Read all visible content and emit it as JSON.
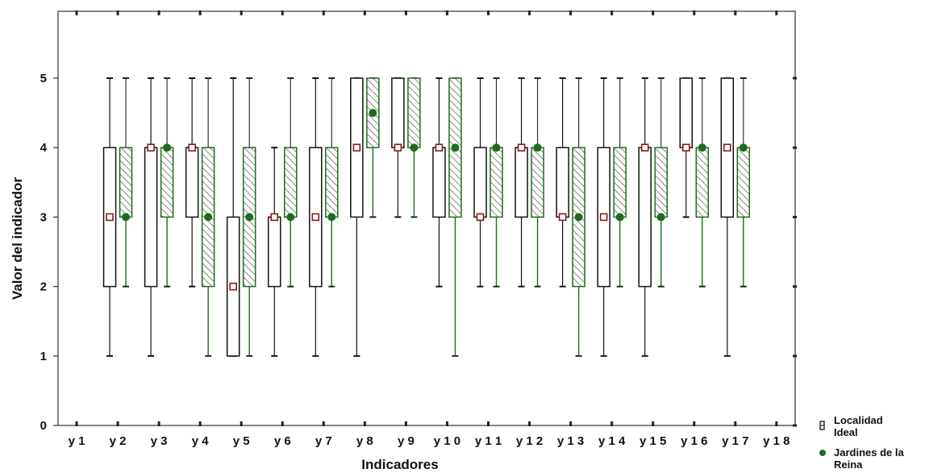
{
  "chart_data": {
    "type": "boxplot",
    "xlabel": "Indicadores",
    "ylabel": "Valor del indicador",
    "ylim": [
      0,
      6
    ],
    "yticks": [
      "0",
      "1",
      "2",
      "3",
      "4",
      "5"
    ],
    "categories": [
      "y 1",
      "y 2",
      "y 3",
      "y 4",
      "y 5",
      "y 6",
      "y 7",
      "y 8",
      "y 9",
      "y 1 0",
      "y 1 1",
      "y 1 2",
      "y 1 3",
      "y 1 4",
      "y 1 5",
      "y 1 6",
      "y 1 7",
      "y 1 8"
    ],
    "grid": false,
    "legend": {
      "position": "bottom-right",
      "entries": [
        {
          "lines": [
            "Localidad",
            "Ideal"
          ],
          "marker": "hollow-box"
        },
        {
          "lines": [
            "Jardines de la",
            "Reina"
          ],
          "marker": "green-dot"
        }
      ]
    },
    "colors": {
      "localidad": "#111111",
      "localidad_median": "#8b1a1a",
      "jardines": "#1e6b1e",
      "hatch": "#555555"
    },
    "series": [
      {
        "name": "Localidad Ideal",
        "boxes": [
          {
            "category": "y 2",
            "min": 1,
            "q1": 2,
            "median": 3,
            "q3": 4,
            "max": 5
          },
          {
            "category": "y 3",
            "min": 1,
            "q1": 2,
            "median": 4,
            "q3": 4,
            "max": 5
          },
          {
            "category": "y 4",
            "min": 2,
            "q1": 3,
            "median": 4,
            "q3": 4,
            "max": 5
          },
          {
            "category": "y 5",
            "min": 1,
            "q1": 1,
            "median": 2,
            "q3": 3,
            "max": 5
          },
          {
            "category": "y 6",
            "min": 1,
            "q1": 2,
            "median": 3,
            "q3": 3,
            "max": 4
          },
          {
            "category": "y 7",
            "min": 1,
            "q1": 2,
            "median": 3,
            "q3": 4,
            "max": 5
          },
          {
            "category": "y 8",
            "min": 1,
            "q1": 3,
            "median": 4,
            "q3": 5,
            "max": 5
          },
          {
            "category": "y 9",
            "min": 3,
            "q1": 4,
            "median": 4,
            "q3": 5,
            "max": 5
          },
          {
            "category": "y 1 0",
            "min": 2,
            "q1": 3,
            "median": 4,
            "q3": 4,
            "max": 5
          },
          {
            "category": "y 1 1",
            "min": 2,
            "q1": 3,
            "median": 3,
            "q3": 4,
            "max": 5
          },
          {
            "category": "y 1 2",
            "min": 2,
            "q1": 3,
            "median": 4,
            "q3": 4,
            "max": 5
          },
          {
            "category": "y 1 3",
            "min": 2,
            "q1": 3,
            "median": 3,
            "q3": 4,
            "max": 5
          },
          {
            "category": "y 1 4",
            "min": 1,
            "q1": 2,
            "median": 3,
            "q3": 4,
            "max": 5
          },
          {
            "category": "y 1 5",
            "min": 1,
            "q1": 2,
            "median": 4,
            "q3": 4,
            "max": 5
          },
          {
            "category": "y 1 6",
            "min": 3,
            "q1": 4,
            "median": 4,
            "q3": 5,
            "max": 5
          },
          {
            "category": "y 1 7",
            "min": 1,
            "q1": 3,
            "median": 4,
            "q3": 5,
            "max": 5
          }
        ]
      },
      {
        "name": "Jardines de la Reina",
        "boxes": [
          {
            "category": "y 2",
            "min": 2,
            "q1": 3,
            "median": 3,
            "q3": 4,
            "max": 5
          },
          {
            "category": "y 3",
            "min": 2,
            "q1": 3,
            "median": 4,
            "q3": 4,
            "max": 5
          },
          {
            "category": "y 4",
            "min": 1,
            "q1": 2,
            "median": 3,
            "q3": 4,
            "max": 5
          },
          {
            "category": "y 5",
            "min": 1,
            "q1": 2,
            "median": 3,
            "q3": 4,
            "max": 5
          },
          {
            "category": "y 6",
            "min": 2,
            "q1": 3,
            "median": 3,
            "q3": 4,
            "max": 5
          },
          {
            "category": "y 7",
            "min": 2,
            "q1": 3,
            "median": 3,
            "q3": 4,
            "max": 5
          },
          {
            "category": "y 8",
            "min": 3,
            "q1": 4,
            "median": 4.5,
            "q3": 5,
            "max": 5
          },
          {
            "category": "y 9",
            "min": 3,
            "q1": 4,
            "median": 4,
            "q3": 5,
            "max": 5
          },
          {
            "category": "y 1 0",
            "min": 1,
            "q1": 3,
            "median": 4,
            "q3": 5,
            "max": 5
          },
          {
            "category": "y 1 1",
            "min": 2,
            "q1": 3,
            "median": 4,
            "q3": 4,
            "max": 5
          },
          {
            "category": "y 1 2",
            "min": 2,
            "q1": 3,
            "median": 4,
            "q3": 4,
            "max": 5
          },
          {
            "category": "y 1 3",
            "min": 1,
            "q1": 2,
            "median": 3,
            "q3": 4,
            "max": 5
          },
          {
            "category": "y 1 4",
            "min": 2,
            "q1": 3,
            "median": 3,
            "q3": 4,
            "max": 5
          },
          {
            "category": "y 1 5",
            "min": 2,
            "q1": 3,
            "median": 3,
            "q3": 4,
            "max": 5
          },
          {
            "category": "y 1 6",
            "min": 2,
            "q1": 3,
            "median": 4,
            "q3": 4,
            "max": 5
          },
          {
            "category": "y 1 7",
            "min": 2,
            "q1": 3,
            "median": 4,
            "q3": 4,
            "max": 5
          }
        ]
      }
    ]
  }
}
